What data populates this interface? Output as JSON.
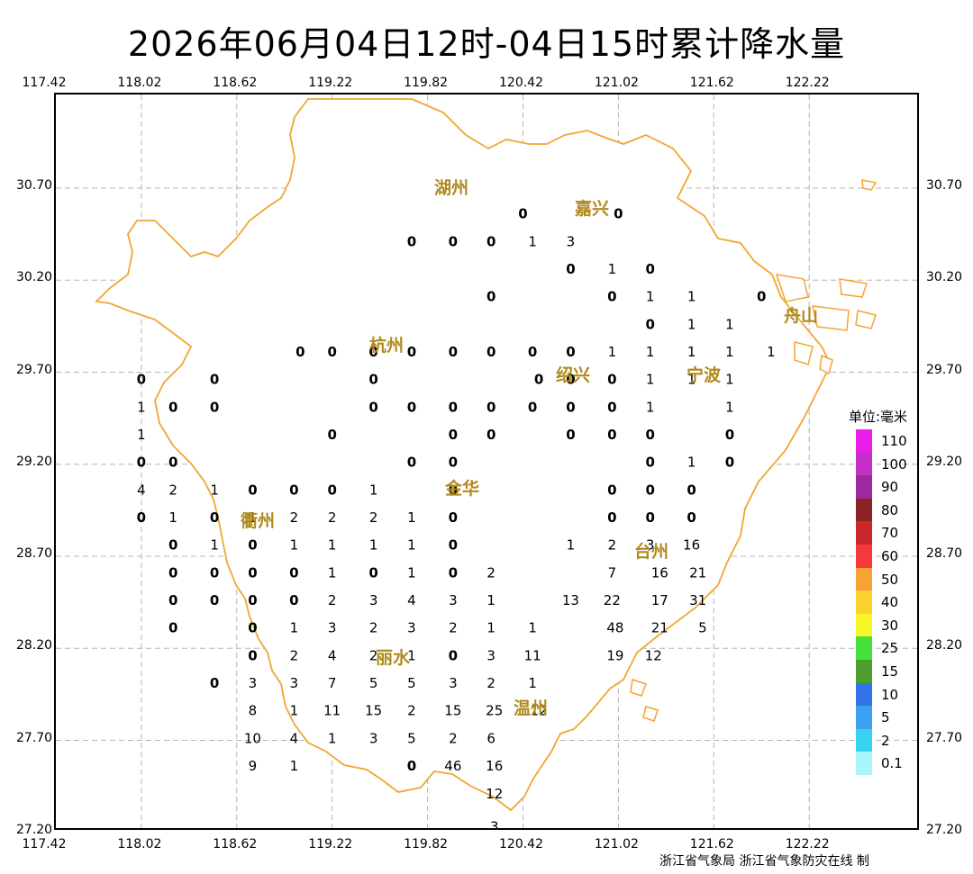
{
  "title": "2026年06月04日12时-04日15时累计降水量",
  "lon_ticks": [
    "117.42",
    "118.02",
    "118.62",
    "119.22",
    "119.82",
    "120.42",
    "121.02",
    "121.62",
    "122.22"
  ],
  "lat_ticks": [
    "30.70",
    "30.20",
    "29.70",
    "29.20",
    "28.70",
    "28.20",
    "27.70",
    "27.20"
  ],
  "cities": [
    "湖州",
    "嘉兴",
    "杭州",
    "绍兴",
    "宁波",
    "衢州",
    "金华",
    "台州",
    "丽水",
    "舟山",
    "温州"
  ],
  "legend": {
    "title": "单位:毫米",
    "levels": [
      {
        "label": "110",
        "color": "#e91ee9"
      },
      {
        "label": "100",
        "color": "#c52fc5"
      },
      {
        "label": "90",
        "color": "#9c2a9c"
      },
      {
        "label": "80",
        "color": "#8b2323"
      },
      {
        "label": "70",
        "color": "#c8282a"
      },
      {
        "label": "60",
        "color": "#f53a3a"
      },
      {
        "label": "50",
        "color": "#f7a233"
      },
      {
        "label": "40",
        "color": "#fcd12e"
      },
      {
        "label": "30",
        "color": "#f6f629"
      },
      {
        "label": "25",
        "color": "#43e13c"
      },
      {
        "label": "15",
        "color": "#4d9e2c"
      },
      {
        "label": "10",
        "color": "#3274e6"
      },
      {
        "label": "5",
        "color": "#3aa2f1"
      },
      {
        "label": "2",
        "color": "#38d3f0"
      },
      {
        "label": "0.1",
        "color": "#a9f5fb"
      }
    ]
  },
  "station_values": [
    {
      "lon": 120.42,
      "lat": 30.57,
      "v": "0"
    },
    {
      "lon": 121.02,
      "lat": 30.57,
      "v": "0"
    },
    {
      "lon": 119.72,
      "lat": 30.42,
      "v": "0"
    },
    {
      "lon": 119.98,
      "lat": 30.42,
      "v": "0"
    },
    {
      "lon": 120.22,
      "lat": 30.42,
      "v": "0"
    },
    {
      "lon": 120.48,
      "lat": 30.42,
      "v": "1"
    },
    {
      "lon": 120.72,
      "lat": 30.42,
      "v": "3"
    },
    {
      "lon": 120.72,
      "lat": 30.27,
      "v": "0"
    },
    {
      "lon": 120.98,
      "lat": 30.27,
      "v": "1"
    },
    {
      "lon": 121.22,
      "lat": 30.27,
      "v": "0"
    },
    {
      "lon": 121.92,
      "lat": 30.12,
      "v": "0"
    },
    {
      "lon": 120.22,
      "lat": 30.12,
      "v": "0"
    },
    {
      "lon": 120.98,
      "lat": 30.12,
      "v": "0"
    },
    {
      "lon": 121.22,
      "lat": 30.12,
      "v": "1"
    },
    {
      "lon": 121.48,
      "lat": 30.12,
      "v": "1"
    },
    {
      "lon": 121.22,
      "lat": 29.97,
      "v": "0"
    },
    {
      "lon": 121.48,
      "lat": 29.97,
      "v": "1"
    },
    {
      "lon": 121.72,
      "lat": 29.97,
      "v": "1"
    },
    {
      "lon": 119.02,
      "lat": 29.82,
      "v": "0"
    },
    {
      "lon": 119.22,
      "lat": 29.82,
      "v": "0"
    },
    {
      "lon": 119.48,
      "lat": 29.82,
      "v": "0"
    },
    {
      "lon": 119.72,
      "lat": 29.82,
      "v": "0"
    },
    {
      "lon": 119.98,
      "lat": 29.82,
      "v": "0"
    },
    {
      "lon": 120.22,
      "lat": 29.82,
      "v": "0"
    },
    {
      "lon": 120.48,
      "lat": 29.82,
      "v": "0"
    },
    {
      "lon": 120.72,
      "lat": 29.82,
      "v": "0"
    },
    {
      "lon": 120.98,
      "lat": 29.82,
      "v": "1"
    },
    {
      "lon": 121.22,
      "lat": 29.82,
      "v": "1"
    },
    {
      "lon": 121.48,
      "lat": 29.82,
      "v": "1"
    },
    {
      "lon": 121.72,
      "lat": 29.82,
      "v": "1"
    },
    {
      "lon": 121.98,
      "lat": 29.82,
      "v": "1"
    },
    {
      "lon": 118.02,
      "lat": 29.67,
      "v": "0"
    },
    {
      "lon": 118.48,
      "lat": 29.67,
      "v": "0"
    },
    {
      "lon": 119.48,
      "lat": 29.67,
      "v": "0"
    },
    {
      "lon": 120.52,
      "lat": 29.67,
      "v": "0"
    },
    {
      "lon": 120.72,
      "lat": 29.67,
      "v": "0"
    },
    {
      "lon": 120.98,
      "lat": 29.67,
      "v": "0"
    },
    {
      "lon": 121.22,
      "lat": 29.67,
      "v": "1"
    },
    {
      "lon": 121.48,
      "lat": 29.67,
      "v": "1"
    },
    {
      "lon": 121.72,
      "lat": 29.67,
      "v": "1"
    },
    {
      "lon": 118.02,
      "lat": 29.52,
      "v": "1"
    },
    {
      "lon": 118.22,
      "lat": 29.52,
      "v": "0"
    },
    {
      "lon": 118.48,
      "lat": 29.52,
      "v": "0"
    },
    {
      "lon": 119.48,
      "lat": 29.52,
      "v": "0"
    },
    {
      "lon": 119.72,
      "lat": 29.52,
      "v": "0"
    },
    {
      "lon": 119.98,
      "lat": 29.52,
      "v": "0"
    },
    {
      "lon": 120.22,
      "lat": 29.52,
      "v": "0"
    },
    {
      "lon": 120.48,
      "lat": 29.52,
      "v": "0"
    },
    {
      "lon": 120.72,
      "lat": 29.52,
      "v": "0"
    },
    {
      "lon": 120.98,
      "lat": 29.52,
      "v": "0"
    },
    {
      "lon": 121.22,
      "lat": 29.52,
      "v": "1"
    },
    {
      "lon": 121.72,
      "lat": 29.52,
      "v": "1"
    },
    {
      "lon": 118.02,
      "lat": 29.37,
      "v": "1"
    },
    {
      "lon": 119.22,
      "lat": 29.37,
      "v": "0"
    },
    {
      "lon": 119.98,
      "lat": 29.37,
      "v": "0"
    },
    {
      "lon": 120.22,
      "lat": 29.37,
      "v": "0"
    },
    {
      "lon": 120.72,
      "lat": 29.37,
      "v": "0"
    },
    {
      "lon": 120.98,
      "lat": 29.37,
      "v": "0"
    },
    {
      "lon": 121.22,
      "lat": 29.37,
      "v": "0"
    },
    {
      "lon": 121.72,
      "lat": 29.37,
      "v": "0"
    },
    {
      "lon": 118.02,
      "lat": 29.22,
      "v": "0"
    },
    {
      "lon": 118.22,
      "lat": 29.22,
      "v": "0"
    },
    {
      "lon": 119.72,
      "lat": 29.22,
      "v": "0"
    },
    {
      "lon": 119.98,
      "lat": 29.22,
      "v": "0"
    },
    {
      "lon": 121.22,
      "lat": 29.22,
      "v": "0"
    },
    {
      "lon": 121.48,
      "lat": 29.22,
      "v": "1"
    },
    {
      "lon": 121.72,
      "lat": 29.22,
      "v": "0"
    },
    {
      "lon": 118.02,
      "lat": 29.07,
      "v": "4"
    },
    {
      "lon": 118.22,
      "lat": 29.07,
      "v": "2"
    },
    {
      "lon": 118.48,
      "lat": 29.07,
      "v": "1"
    },
    {
      "lon": 118.72,
      "lat": 29.07,
      "v": "0"
    },
    {
      "lon": 118.98,
      "lat": 29.07,
      "v": "0"
    },
    {
      "lon": 119.22,
      "lat": 29.07,
      "v": "0"
    },
    {
      "lon": 119.48,
      "lat": 29.07,
      "v": "1"
    },
    {
      "lon": 119.98,
      "lat": 29.07,
      "v": "0"
    },
    {
      "lon": 120.98,
      "lat": 29.07,
      "v": "0"
    },
    {
      "lon": 121.22,
      "lat": 29.07,
      "v": "0"
    },
    {
      "lon": 121.48,
      "lat": 29.07,
      "v": "0"
    },
    {
      "lon": 118.02,
      "lat": 28.92,
      "v": "0"
    },
    {
      "lon": 118.22,
      "lat": 28.92,
      "v": "1"
    },
    {
      "lon": 118.48,
      "lat": 28.92,
      "v": "0"
    },
    {
      "lon": 118.72,
      "lat": 28.92,
      "v": "1"
    },
    {
      "lon": 118.98,
      "lat": 28.92,
      "v": "2"
    },
    {
      "lon": 119.22,
      "lat": 28.92,
      "v": "2"
    },
    {
      "lon": 119.48,
      "lat": 28.92,
      "v": "2"
    },
    {
      "lon": 119.72,
      "lat": 28.92,
      "v": "1"
    },
    {
      "lon": 119.98,
      "lat": 28.92,
      "v": "0"
    },
    {
      "lon": 120.98,
      "lat": 28.92,
      "v": "0"
    },
    {
      "lon": 121.22,
      "lat": 28.92,
      "v": "0"
    },
    {
      "lon": 121.48,
      "lat": 28.92,
      "v": "0"
    },
    {
      "lon": 118.22,
      "lat": 28.77,
      "v": "0"
    },
    {
      "lon": 118.48,
      "lat": 28.77,
      "v": "1"
    },
    {
      "lon": 118.72,
      "lat": 28.77,
      "v": "0"
    },
    {
      "lon": 118.98,
      "lat": 28.77,
      "v": "1"
    },
    {
      "lon": 119.22,
      "lat": 28.77,
      "v": "1"
    },
    {
      "lon": 119.48,
      "lat": 28.77,
      "v": "1"
    },
    {
      "lon": 119.72,
      "lat": 28.77,
      "v": "1"
    },
    {
      "lon": 119.98,
      "lat": 28.77,
      "v": "0"
    },
    {
      "lon": 120.72,
      "lat": 28.77,
      "v": "1"
    },
    {
      "lon": 120.98,
      "lat": 28.77,
      "v": "2"
    },
    {
      "lon": 121.22,
      "lat": 28.77,
      "v": "3"
    },
    {
      "lon": 121.48,
      "lat": 28.77,
      "v": "16"
    },
    {
      "lon": 118.22,
      "lat": 28.62,
      "v": "0"
    },
    {
      "lon": 118.48,
      "lat": 28.62,
      "v": "0"
    },
    {
      "lon": 118.72,
      "lat": 28.62,
      "v": "0"
    },
    {
      "lon": 118.98,
      "lat": 28.62,
      "v": "0"
    },
    {
      "lon": 119.22,
      "lat": 28.62,
      "v": "1"
    },
    {
      "lon": 119.48,
      "lat": 28.62,
      "v": "0"
    },
    {
      "lon": 119.72,
      "lat": 28.62,
      "v": "1"
    },
    {
      "lon": 119.98,
      "lat": 28.62,
      "v": "0"
    },
    {
      "lon": 120.22,
      "lat": 28.62,
      "v": "2"
    },
    {
      "lon": 120.98,
      "lat": 28.62,
      "v": "7"
    },
    {
      "lon": 121.28,
      "lat": 28.62,
      "v": "16"
    },
    {
      "lon": 121.52,
      "lat": 28.62,
      "v": "21"
    },
    {
      "lon": 118.22,
      "lat": 28.47,
      "v": "0"
    },
    {
      "lon": 118.48,
      "lat": 28.47,
      "v": "0"
    },
    {
      "lon": 118.72,
      "lat": 28.47,
      "v": "0"
    },
    {
      "lon": 118.98,
      "lat": 28.47,
      "v": "0"
    },
    {
      "lon": 119.22,
      "lat": 28.47,
      "v": "2"
    },
    {
      "lon": 119.48,
      "lat": 28.47,
      "v": "3"
    },
    {
      "lon": 119.72,
      "lat": 28.47,
      "v": "4"
    },
    {
      "lon": 119.98,
      "lat": 28.47,
      "v": "3"
    },
    {
      "lon": 120.22,
      "lat": 28.47,
      "v": "1"
    },
    {
      "lon": 120.72,
      "lat": 28.47,
      "v": "13"
    },
    {
      "lon": 120.98,
      "lat": 28.47,
      "v": "22"
    },
    {
      "lon": 121.28,
      "lat": 28.47,
      "v": "17"
    },
    {
      "lon": 121.52,
      "lat": 28.47,
      "v": "31"
    },
    {
      "lon": 118.22,
      "lat": 28.32,
      "v": "0"
    },
    {
      "lon": 118.72,
      "lat": 28.32,
      "v": "0"
    },
    {
      "lon": 118.98,
      "lat": 28.32,
      "v": "1"
    },
    {
      "lon": 119.22,
      "lat": 28.32,
      "v": "3"
    },
    {
      "lon": 119.48,
      "lat": 28.32,
      "v": "2"
    },
    {
      "lon": 119.72,
      "lat": 28.32,
      "v": "3"
    },
    {
      "lon": 119.98,
      "lat": 28.32,
      "v": "2"
    },
    {
      "lon": 120.22,
      "lat": 28.32,
      "v": "1"
    },
    {
      "lon": 120.48,
      "lat": 28.32,
      "v": "1"
    },
    {
      "lon": 121.0,
      "lat": 28.32,
      "v": "48"
    },
    {
      "lon": 121.28,
      "lat": 28.32,
      "v": "21"
    },
    {
      "lon": 121.55,
      "lat": 28.32,
      "v": "5"
    },
    {
      "lon": 118.72,
      "lat": 28.17,
      "v": "0"
    },
    {
      "lon": 118.98,
      "lat": 28.17,
      "v": "2"
    },
    {
      "lon": 119.22,
      "lat": 28.17,
      "v": "4"
    },
    {
      "lon": 119.48,
      "lat": 28.17,
      "v": "2"
    },
    {
      "lon": 119.72,
      "lat": 28.17,
      "v": "1"
    },
    {
      "lon": 119.98,
      "lat": 28.17,
      "v": "0"
    },
    {
      "lon": 120.22,
      "lat": 28.17,
      "v": "3"
    },
    {
      "lon": 120.48,
      "lat": 28.17,
      "v": "11"
    },
    {
      "lon": 121.0,
      "lat": 28.17,
      "v": "19"
    },
    {
      "lon": 121.24,
      "lat": 28.17,
      "v": "12"
    },
    {
      "lon": 118.48,
      "lat": 28.02,
      "v": "0"
    },
    {
      "lon": 118.72,
      "lat": 28.02,
      "v": "3"
    },
    {
      "lon": 118.98,
      "lat": 28.02,
      "v": "3"
    },
    {
      "lon": 119.22,
      "lat": 28.02,
      "v": "7"
    },
    {
      "lon": 119.48,
      "lat": 28.02,
      "v": "5"
    },
    {
      "lon": 119.72,
      "lat": 28.02,
      "v": "5"
    },
    {
      "lon": 119.98,
      "lat": 28.02,
      "v": "3"
    },
    {
      "lon": 120.22,
      "lat": 28.02,
      "v": "2"
    },
    {
      "lon": 120.48,
      "lat": 28.02,
      "v": "1"
    },
    {
      "lon": 118.72,
      "lat": 27.87,
      "v": "8"
    },
    {
      "lon": 118.98,
      "lat": 27.87,
      "v": "1"
    },
    {
      "lon": 119.22,
      "lat": 27.87,
      "v": "11"
    },
    {
      "lon": 119.48,
      "lat": 27.87,
      "v": "15"
    },
    {
      "lon": 119.72,
      "lat": 27.87,
      "v": "2"
    },
    {
      "lon": 119.98,
      "lat": 27.87,
      "v": "15"
    },
    {
      "lon": 120.24,
      "lat": 27.87,
      "v": "25"
    },
    {
      "lon": 120.52,
      "lat": 27.87,
      "v": "12"
    },
    {
      "lon": 118.72,
      "lat": 27.72,
      "v": "10"
    },
    {
      "lon": 118.98,
      "lat": 27.72,
      "v": "4"
    },
    {
      "lon": 119.22,
      "lat": 27.72,
      "v": "1"
    },
    {
      "lon": 119.48,
      "lat": 27.72,
      "v": "3"
    },
    {
      "lon": 119.72,
      "lat": 27.72,
      "v": "5"
    },
    {
      "lon": 119.98,
      "lat": 27.72,
      "v": "2"
    },
    {
      "lon": 120.22,
      "lat": 27.72,
      "v": "6"
    },
    {
      "lon": 118.72,
      "lat": 27.57,
      "v": "9"
    },
    {
      "lon": 118.98,
      "lat": 27.57,
      "v": "1"
    },
    {
      "lon": 119.72,
      "lat": 27.57,
      "v": "0"
    },
    {
      "lon": 119.98,
      "lat": 27.57,
      "v": "46"
    },
    {
      "lon": 120.24,
      "lat": 27.57,
      "v": "16"
    },
    {
      "lon": 120.24,
      "lat": 27.42,
      "v": "12"
    },
    {
      "lon": 120.24,
      "lat": 27.24,
      "v": "3"
    }
  ],
  "credit": "浙江省气象局 浙江省气象防灾在线 制"
}
